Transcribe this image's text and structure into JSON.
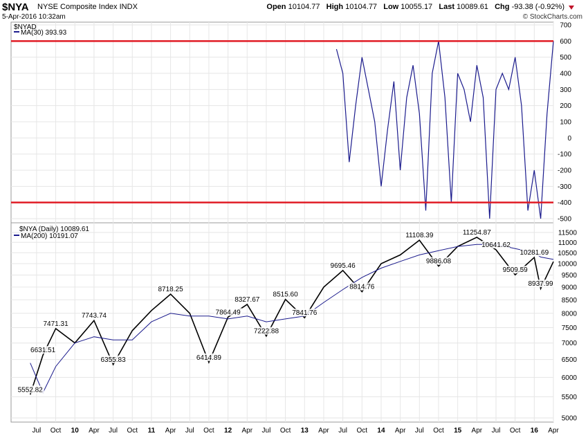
{
  "header": {
    "symbol": "$NYA",
    "description": "NYSE Composite Index",
    "exchange": "INDX",
    "datetime": "5-Apr-2016 10:32am",
    "brand": "© StockCharts.com",
    "open_label": "Open",
    "open": "10104.77",
    "high_label": "High",
    "high": "10104.77",
    "low_label": "Low",
    "low": "10055.17",
    "last_label": "Last",
    "last": "10089.61",
    "chg_label": "Chg",
    "chg": "-93.38 (-0.92%)",
    "down_color": "#c0142a"
  },
  "chart_data": [
    {
      "type": "line",
      "panel": "indicator",
      "legend_title": "$NYAD",
      "series": [
        {
          "name": "MA(30) 393.93",
          "color": "#1a1a8c",
          "x": [
            "2013-06",
            "2013-07",
            "2013-08",
            "2013-09",
            "2013-10",
            "2013-11",
            "2013-12",
            "2014-01",
            "2014-02",
            "2014-03",
            "2014-04",
            "2014-05",
            "2014-06",
            "2014-07",
            "2014-08",
            "2014-09",
            "2014-10",
            "2014-11",
            "2014-12",
            "2015-01",
            "2015-02",
            "2015-03",
            "2015-04",
            "2015-05",
            "2015-06",
            "2015-07",
            "2015-08",
            "2015-09",
            "2015-10",
            "2015-11",
            "2015-12",
            "2016-01",
            "2016-02",
            "2016-03",
            "2016-04"
          ],
          "values": [
            550,
            400,
            -150,
            200,
            500,
            300,
            100,
            -300,
            50,
            350,
            -200,
            250,
            450,
            150,
            -450,
            400,
            600,
            250,
            -400,
            400,
            300,
            100,
            450,
            250,
            -500,
            300,
            400,
            300,
            500,
            200,
            -450,
            -200,
            -500,
            150,
            600
          ]
        }
      ],
      "ylim": [
        -500,
        700
      ],
      "yticks": [
        -500,
        -400,
        -300,
        -200,
        -100,
        0,
        100,
        200,
        300,
        400,
        500,
        600,
        700
      ],
      "horizontal_lines": [
        600,
        -400
      ],
      "line_color": "#e01b24"
    },
    {
      "type": "line",
      "panel": "price",
      "legend_title": "$NYA (Daily) 10089.61",
      "series": [
        {
          "name": "$NYA (Daily)",
          "color": "#000000",
          "x": [
            "2009-06",
            "2009-08",
            "2009-10",
            "2010-01",
            "2010-04",
            "2010-07",
            "2010-10",
            "2011-01",
            "2011-04",
            "2011-07",
            "2011-10",
            "2012-01",
            "2012-04",
            "2012-07",
            "2012-10",
            "2013-01",
            "2013-04",
            "2013-07",
            "2013-10",
            "2014-01",
            "2014-04",
            "2014-07",
            "2014-10",
            "2015-01",
            "2015-04",
            "2015-07",
            "2015-10",
            "2016-01",
            "2016-02",
            "2016-04"
          ],
          "values": [
            5552.82,
            6631.51,
            7471.31,
            7000,
            7743.74,
            6355.83,
            7400,
            8100,
            8718.25,
            8000,
            6414.89,
            7864.49,
            8327.67,
            7222.88,
            8515.6,
            7841.76,
            9000,
            9695.46,
            8814.76,
            10000,
            10400,
            11108.39,
            9886.08,
            10800,
            11254.87,
            10641.62,
            9509.59,
            10281.69,
            8937.99,
            10089.61
          ]
        },
        {
          "name": "MA(200) 10191.07",
          "color": "#1a1a8c",
          "x": [
            "2009-06",
            "2009-08",
            "2009-10",
            "2010-01",
            "2010-04",
            "2010-07",
            "2010-10",
            "2011-01",
            "2011-04",
            "2011-07",
            "2011-10",
            "2012-01",
            "2012-04",
            "2012-07",
            "2012-10",
            "2013-01",
            "2013-04",
            "2013-07",
            "2013-10",
            "2014-01",
            "2014-04",
            "2014-07",
            "2014-10",
            "2015-01",
            "2015-04",
            "2015-07",
            "2015-10",
            "2016-01",
            "2016-02",
            "2016-04"
          ],
          "values": [
            6400,
            5600,
            6300,
            7000,
            7200,
            7100,
            7100,
            7700,
            8000,
            7900,
            7900,
            7800,
            7900,
            7700,
            7800,
            7900,
            8400,
            8900,
            9400,
            9800,
            10100,
            10400,
            10600,
            10800,
            10900,
            10900,
            10700,
            10500,
            10300,
            10191.07
          ]
        }
      ],
      "annotations": [
        {
          "label": "5552.82",
          "x": "2009-06",
          "y": 5552.82
        },
        {
          "label": "6631.51",
          "x": "2009-08",
          "y": 6631.51
        },
        {
          "label": "7471.31",
          "x": "2009-10",
          "y": 7471.31
        },
        {
          "label": "7743.74",
          "x": "2010-04",
          "y": 7743.74
        },
        {
          "label": "6355.83",
          "x": "2010-07",
          "y": 6355.83
        },
        {
          "label": "8718.25",
          "x": "2011-04",
          "y": 8718.25
        },
        {
          "label": "6414.89",
          "x": "2011-10",
          "y": 6414.89
        },
        {
          "label": "7864.49",
          "x": "2012-01",
          "y": 7864.49
        },
        {
          "label": "8327.67",
          "x": "2012-04",
          "y": 8327.67
        },
        {
          "label": "7222.88",
          "x": "2012-07",
          "y": 7222.88
        },
        {
          "label": "8515.60",
          "x": "2012-10",
          "y": 8515.6
        },
        {
          "label": "7841.76",
          "x": "2013-01",
          "y": 7841.76
        },
        {
          "label": "9695.46",
          "x": "2013-07",
          "y": 9695.46
        },
        {
          "label": "8814.76",
          "x": "2013-10",
          "y": 8814.76
        },
        {
          "label": "11108.39",
          "x": "2014-07",
          "y": 11108.39
        },
        {
          "label": "9886.08",
          "x": "2014-10",
          "y": 9886.08
        },
        {
          "label": "11254.87",
          "x": "2015-04",
          "y": 11254.87
        },
        {
          "label": "10641.62",
          "x": "2015-07",
          "y": 10641.62
        },
        {
          "label": "9509.59",
          "x": "2015-10",
          "y": 9509.59
        },
        {
          "label": "10281.69",
          "x": "2016-01",
          "y": 10281.69
        },
        {
          "label": "8937.99",
          "x": "2016-02",
          "y": 8937.99
        }
      ],
      "ylim": [
        5000,
        11500
      ],
      "yticks": [
        5000,
        5500,
        6000,
        6500,
        7000,
        7500,
        8000,
        8500,
        9000,
        9500,
        10000,
        10500,
        11000,
        11500
      ],
      "y_scale": "log",
      "xlim": [
        "2009-03",
        "2016-04"
      ],
      "xticks": [
        {
          "label": "Jul",
          "x": "2009-07"
        },
        {
          "label": "Oct",
          "x": "2009-10"
        },
        {
          "label": "10",
          "x": "2010-01"
        },
        {
          "label": "Apr",
          "x": "2010-04"
        },
        {
          "label": "Jul",
          "x": "2010-07"
        },
        {
          "label": "Oct",
          "x": "2010-10"
        },
        {
          "label": "11",
          "x": "2011-01"
        },
        {
          "label": "Apr",
          "x": "2011-04"
        },
        {
          "label": "Jul",
          "x": "2011-07"
        },
        {
          "label": "Oct",
          "x": "2011-10"
        },
        {
          "label": "12",
          "x": "2012-01"
        },
        {
          "label": "Apr",
          "x": "2012-04"
        },
        {
          "label": "Jul",
          "x": "2012-07"
        },
        {
          "label": "Oct",
          "x": "2012-10"
        },
        {
          "label": "13",
          "x": "2013-01"
        },
        {
          "label": "Apr",
          "x": "2013-04"
        },
        {
          "label": "Jul",
          "x": "2013-07"
        },
        {
          "label": "Oct",
          "x": "2013-10"
        },
        {
          "label": "14",
          "x": "2014-01"
        },
        {
          "label": "Apr",
          "x": "2014-04"
        },
        {
          "label": "Jul",
          "x": "2014-07"
        },
        {
          "label": "Oct",
          "x": "2014-10"
        },
        {
          "label": "15",
          "x": "2015-01"
        },
        {
          "label": "Apr",
          "x": "2015-04"
        },
        {
          "label": "Jul",
          "x": "2015-07"
        },
        {
          "label": "Oct",
          "x": "2015-10"
        },
        {
          "label": "16",
          "x": "2016-01"
        },
        {
          "label": "Apr",
          "x": "2016-04"
        }
      ]
    }
  ],
  "styles": {
    "panel_border": "#999999",
    "grid_color": "#e6e6e6",
    "text_color": "#000000"
  }
}
